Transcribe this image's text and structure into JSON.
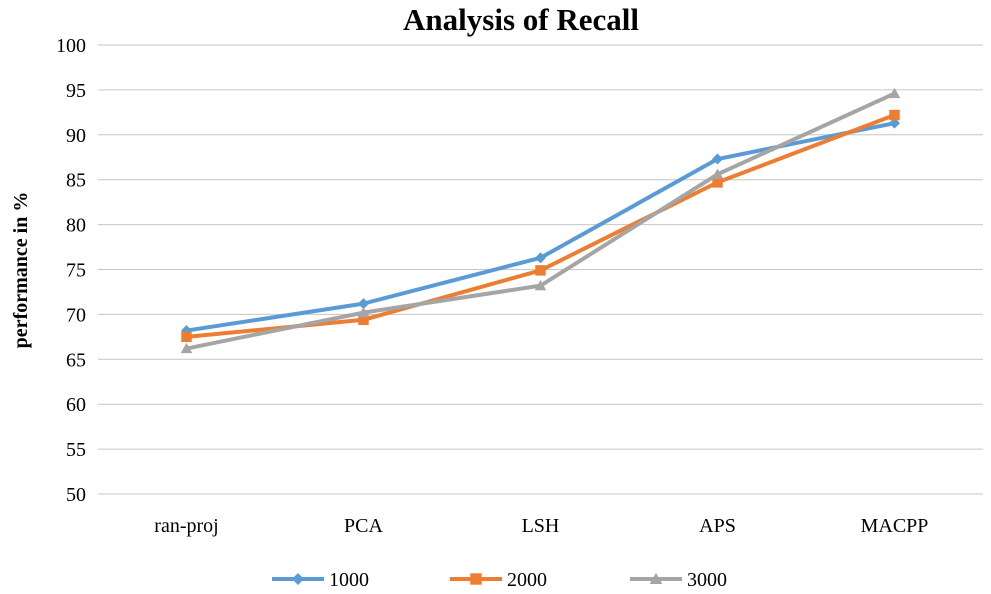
{
  "chart_data": {
    "type": "line",
    "title": "Analysis of Recall",
    "xlabel": "",
    "ylabel": "performance  in %",
    "categories": [
      "ran-proj",
      "PCA",
      "LSH",
      "APS",
      "MACPP"
    ],
    "ylim": [
      50,
      100
    ],
    "yticks": [
      50,
      55,
      60,
      65,
      70,
      75,
      80,
      85,
      90,
      95,
      100
    ],
    "grid": true,
    "legend_position": "bottom",
    "series": [
      {
        "name": "1000",
        "values": [
          68.2,
          71.2,
          76.3,
          87.3,
          91.3
        ],
        "color": "#5B9BD5",
        "marker": "diamond"
      },
      {
        "name": "2000",
        "values": [
          67.5,
          69.4,
          74.9,
          84.7,
          92.2
        ],
        "color": "#ED7D31",
        "marker": "square"
      },
      {
        "name": "3000",
        "values": [
          66.2,
          70.2,
          73.2,
          85.6,
          94.6
        ],
        "color": "#A5A5A5",
        "marker": "triangle"
      }
    ]
  }
}
